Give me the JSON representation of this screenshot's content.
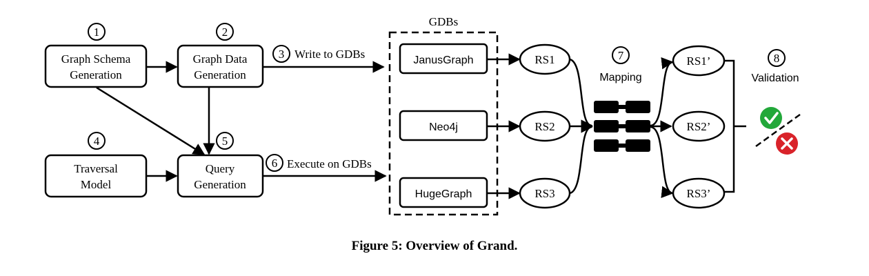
{
  "steps": {
    "s1": "1",
    "s2": "2",
    "s3": "3",
    "s4": "4",
    "s5": "5",
    "s6": "6",
    "s7": "7",
    "s8": "8"
  },
  "boxes": {
    "schema_line1": "Graph Schema",
    "schema_line2": "Generation",
    "data_line1": "Graph Data",
    "data_line2": "Generation",
    "traversal_line1": "Traversal",
    "traversal_line2": "Model",
    "query_line1": "Query",
    "query_line2": "Generation"
  },
  "edges": {
    "write": "Write to GDBs",
    "execute": "Execute on GDBs"
  },
  "gdbs": {
    "title": "GDBs",
    "items": [
      "JanusGraph",
      "Neo4j",
      "HugeGraph"
    ]
  },
  "result_sets": [
    "RS1",
    "RS2",
    "RS3"
  ],
  "mapped_sets": [
    "RS1’",
    "RS2’",
    "RS3’"
  ],
  "mapping_label": "Mapping",
  "validation_label": "Validation",
  "colors": {
    "pass": "#22a83a",
    "fail": "#d9232a"
  },
  "icons": {
    "pass": "check-icon",
    "fail": "cross-icon"
  },
  "caption": "Figure 5: Overview of Grand."
}
